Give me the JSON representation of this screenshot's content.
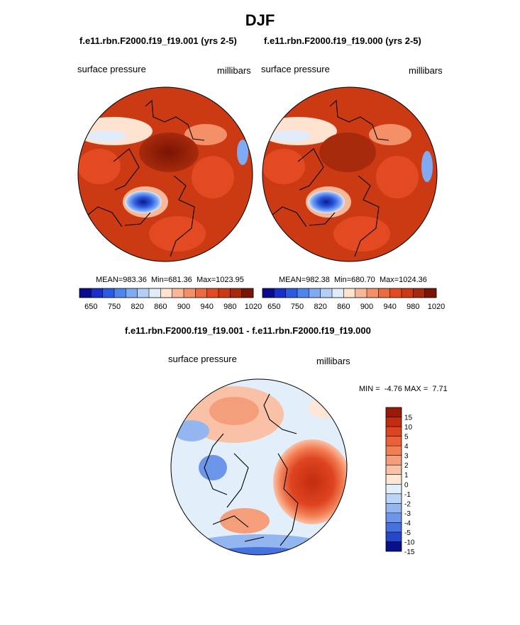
{
  "page": {
    "title": "DJF",
    "panel_left_title": "f.e11.rbn.F2000.f19_f19.001 (yrs 2-5)",
    "panel_right_title": "f.e11.rbn.F2000.f19_f19.000 (yrs 2-5)",
    "diff_title": "f.e11.rbn.F2000.f19_f19.001 - f.e11.rbn.F2000.f19_f19.000"
  },
  "chart_data": [
    {
      "type": "heatmap",
      "projection": "north polar stereographic",
      "variable": "surface pressure",
      "units": "millibars",
      "title": "f.e11.rbn.F2000.f19_f19.001 (yrs 2-5)",
      "stats": {
        "mean_label": "MEAN=",
        "mean": "983.36",
        "min_label": "Min=",
        "min": "681.36",
        "max_label": "Max=",
        "max": "1023.95"
      },
      "colorbar_ticks": [
        "650",
        "750",
        "820",
        "860",
        "900",
        "940",
        "980",
        "1020"
      ],
      "colorbar_colors": [
        "#0a0a8c",
        "#1830c8",
        "#2c5ae0",
        "#4f86ee",
        "#80aaf2",
        "#b4cef6",
        "#e0ecfa",
        "#fde3d0",
        "#f8b898",
        "#f39068",
        "#ec6a40",
        "#e44a22",
        "#cc3a14",
        "#a82a0c",
        "#7a1404"
      ]
    },
    {
      "type": "heatmap",
      "projection": "north polar stereographic",
      "variable": "surface pressure",
      "units": "millibars",
      "title": "f.e11.rbn.F2000.f19_f19.000 (yrs 2-5)",
      "stats": {
        "mean_label": "MEAN=",
        "mean": "982.38",
        "min_label": "Min=",
        "min": "680.70",
        "max_label": "Max=",
        "max": "1024.36"
      },
      "colorbar_ticks": [
        "650",
        "750",
        "820",
        "860",
        "900",
        "940",
        "980",
        "1020"
      ],
      "colorbar_colors": [
        "#0a0a8c",
        "#1830c8",
        "#2c5ae0",
        "#4f86ee",
        "#80aaf2",
        "#b4cef6",
        "#e0ecfa",
        "#fde3d0",
        "#f8b898",
        "#f39068",
        "#ec6a40",
        "#e44a22",
        "#cc3a14",
        "#a82a0c",
        "#7a1404"
      ]
    },
    {
      "type": "heatmap",
      "projection": "north polar stereographic",
      "variable": "surface pressure",
      "units": "millibars",
      "title": "f.e11.rbn.F2000.f19_f19.001 - f.e11.rbn.F2000.f19_f19.000",
      "stats": {
        "min_label": "MIN =",
        "min": "-4.76",
        "max_label": "MAX =",
        "max": "7.71"
      },
      "colorbar_ticks": [
        "15",
        "10",
        "5",
        "4",
        "3",
        "2",
        "1",
        "0",
        "-1",
        "-2",
        "-3",
        "-4",
        "-5",
        "-10",
        "-15"
      ],
      "colorbar_colors": [
        "#9a1a08",
        "#c42c10",
        "#de4420",
        "#ec6036",
        "#f27e54",
        "#f59e7c",
        "#f9c2a6",
        "#fde6d6",
        "#e2eefa",
        "#bcd4f6",
        "#94b6f0",
        "#6c96ea",
        "#4672e0",
        "#2448c8",
        "#08108c"
      ]
    }
  ]
}
